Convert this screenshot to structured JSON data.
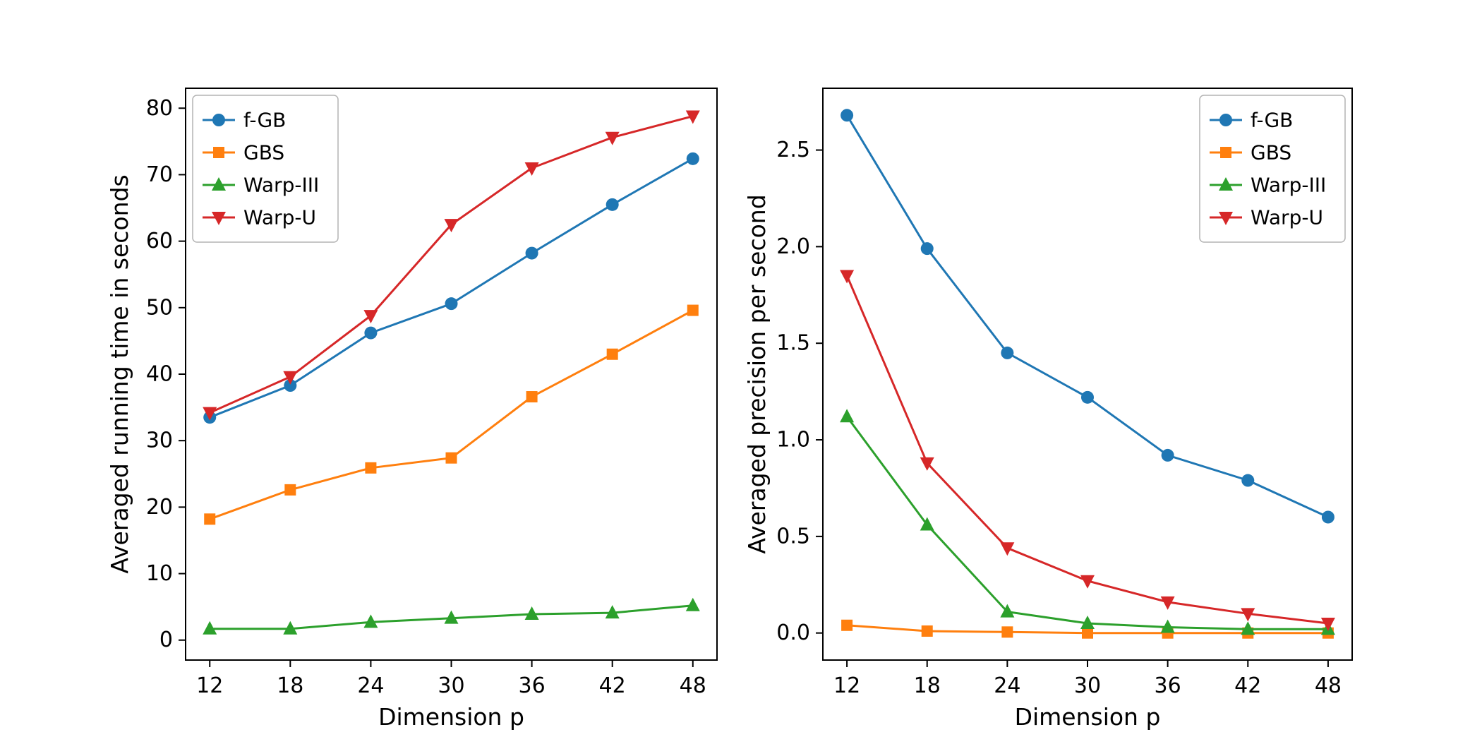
{
  "figure": {
    "background": "#ffffff"
  },
  "chart_data": [
    {
      "id": "running-time",
      "type": "line",
      "title": "",
      "xlabel": "Dimension p",
      "ylabel": "Averaged running time in seconds",
      "x": [
        12,
        18,
        24,
        30,
        36,
        42,
        48
      ],
      "xticks": [
        12,
        18,
        24,
        30,
        36,
        42,
        48
      ],
      "xtick_labels": [
        "12",
        "18",
        "24",
        "30",
        "36",
        "42",
        "48"
      ],
      "yticks": [
        0,
        10,
        20,
        30,
        40,
        50,
        60,
        70,
        80
      ],
      "ytick_labels": [
        "0",
        "10",
        "20",
        "30",
        "40",
        "50",
        "60",
        "70",
        "80"
      ],
      "xlim": [
        10.2,
        49.8
      ],
      "ylim": [
        -3,
        83
      ],
      "grid": false,
      "legend_position": "upper-left",
      "series": [
        {
          "name": "f-GB",
          "color": "#1f77b4",
          "marker": "circle",
          "values": [
            33.5,
            38.3,
            46.2,
            50.6,
            58.2,
            65.5,
            72.4
          ]
        },
        {
          "name": "GBS",
          "color": "#ff7f0e",
          "marker": "square",
          "values": [
            18.2,
            22.6,
            25.9,
            27.4,
            36.6,
            43.0,
            49.6
          ]
        },
        {
          "name": "Warp-III",
          "color": "#2ca02c",
          "marker": "triangle-up",
          "values": [
            1.7,
            1.7,
            2.7,
            3.3,
            3.9,
            4.1,
            5.2
          ]
        },
        {
          "name": "Warp-U",
          "color": "#d62728",
          "marker": "triangle-down",
          "values": [
            34.2,
            39.6,
            48.8,
            62.5,
            71.0,
            75.6,
            78.8
          ]
        }
      ]
    },
    {
      "id": "precision-per-second",
      "type": "line",
      "title": "",
      "xlabel": "Dimension p",
      "ylabel": "Averaged precision per second",
      "x": [
        12,
        18,
        24,
        30,
        36,
        42,
        48
      ],
      "xticks": [
        12,
        18,
        24,
        30,
        36,
        42,
        48
      ],
      "xtick_labels": [
        "12",
        "18",
        "24",
        "30",
        "36",
        "42",
        "48"
      ],
      "yticks": [
        0.0,
        0.5,
        1.0,
        1.5,
        2.0,
        2.5
      ],
      "ytick_labels": [
        "0.0",
        "0.5",
        "1.0",
        "1.5",
        "2.0",
        "2.5"
      ],
      "xlim": [
        10.2,
        49.8
      ],
      "ylim": [
        -0.14,
        2.82
      ],
      "grid": false,
      "legend_position": "upper-right",
      "series": [
        {
          "name": "f-GB",
          "color": "#1f77b4",
          "marker": "circle",
          "values": [
            2.68,
            1.99,
            1.45,
            1.22,
            0.92,
            0.79,
            0.6
          ]
        },
        {
          "name": "GBS",
          "color": "#ff7f0e",
          "marker": "square",
          "values": [
            0.04,
            0.01,
            0.005,
            0.0,
            0.0,
            0.0,
            0.0
          ]
        },
        {
          "name": "Warp-III",
          "color": "#2ca02c",
          "marker": "triangle-up",
          "values": [
            1.12,
            0.56,
            0.11,
            0.05,
            0.03,
            0.02,
            0.02
          ]
        },
        {
          "name": "Warp-U",
          "color": "#d62728",
          "marker": "triangle-down",
          "values": [
            1.85,
            0.88,
            0.44,
            0.27,
            0.16,
            0.1,
            0.05
          ]
        }
      ]
    }
  ]
}
